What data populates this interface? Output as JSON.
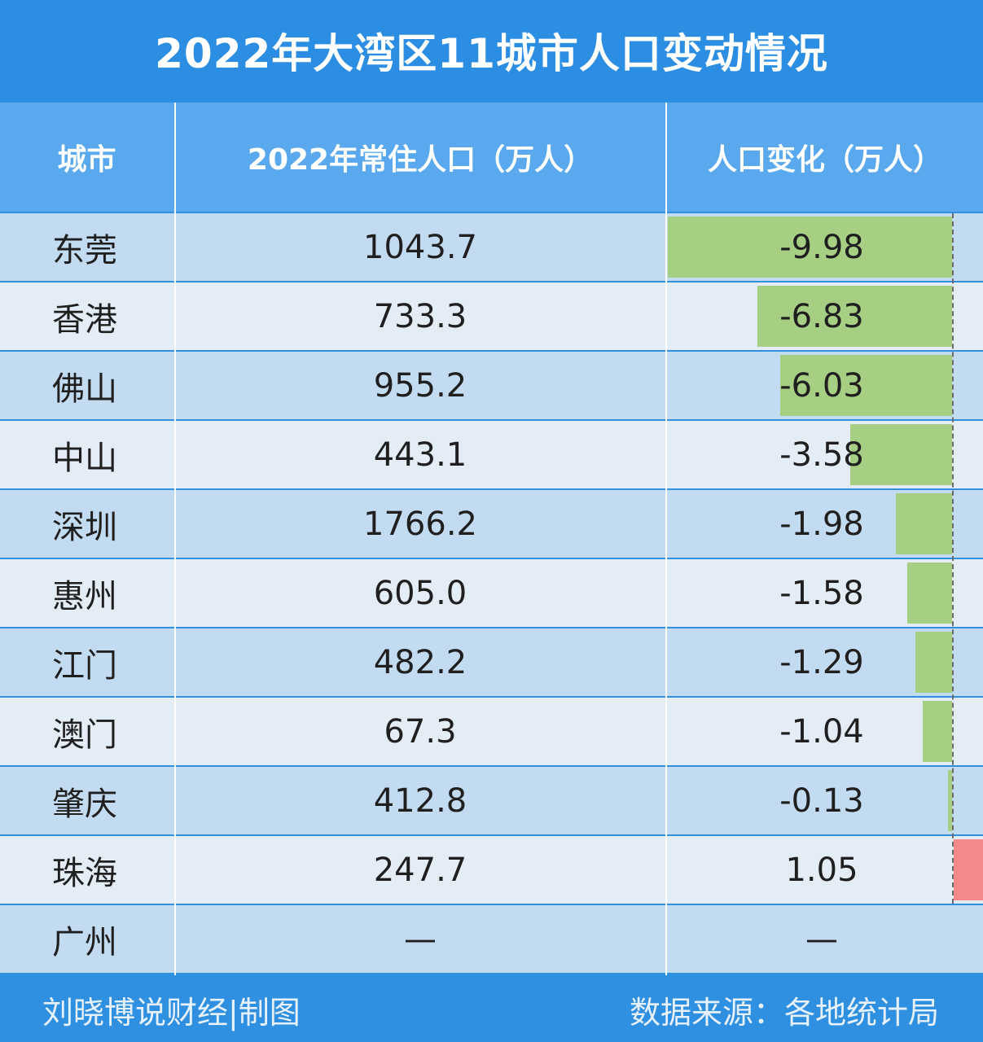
{
  "chart_data": {
    "type": "table",
    "title": "2022年大湾区11城市人口变动情况",
    "columns": [
      "城市",
      "2022年常住人口（万人）",
      "人口变化（万人）"
    ],
    "rows": [
      {
        "city": "东莞",
        "population": "1043.7",
        "change": "-9.98",
        "change_value": -9.98
      },
      {
        "city": "香港",
        "population": "733.3",
        "change": "-6.83",
        "change_value": -6.83
      },
      {
        "city": "佛山",
        "population": "955.2",
        "change": "-6.03",
        "change_value": -6.03
      },
      {
        "city": "中山",
        "population": "443.1",
        "change": "-3.58",
        "change_value": -3.58
      },
      {
        "city": "深圳",
        "population": "1766.2",
        "change": "-1.98",
        "change_value": -1.98
      },
      {
        "city": "惠州",
        "population": "605.0",
        "change": "-1.58",
        "change_value": -1.58
      },
      {
        "city": "江门",
        "population": "482.2",
        "change": "-1.29",
        "change_value": -1.29
      },
      {
        "city": "澳门",
        "population": "67.3",
        "change": "-1.04",
        "change_value": -1.04
      },
      {
        "city": "肇庆",
        "population": "412.8",
        "change": "-0.13",
        "change_value": -0.13
      },
      {
        "city": "珠海",
        "population": "247.7",
        "change": "1.05",
        "change_value": 1.05
      },
      {
        "city": "广州",
        "population": "—",
        "change": "—",
        "change_value": null
      }
    ],
    "bar_colors": {
      "negative": "#a6cf84",
      "positive": "#f5898a"
    }
  },
  "footer": {
    "credit": "刘晓博说财经|制图",
    "source": "数据来源：各地统计局"
  },
  "colors": {
    "title_bg": "#2b8ee3",
    "header_bg": "#5aa9ee",
    "row_dark": "#c3dbf0",
    "row_light": "#e4edf6"
  }
}
